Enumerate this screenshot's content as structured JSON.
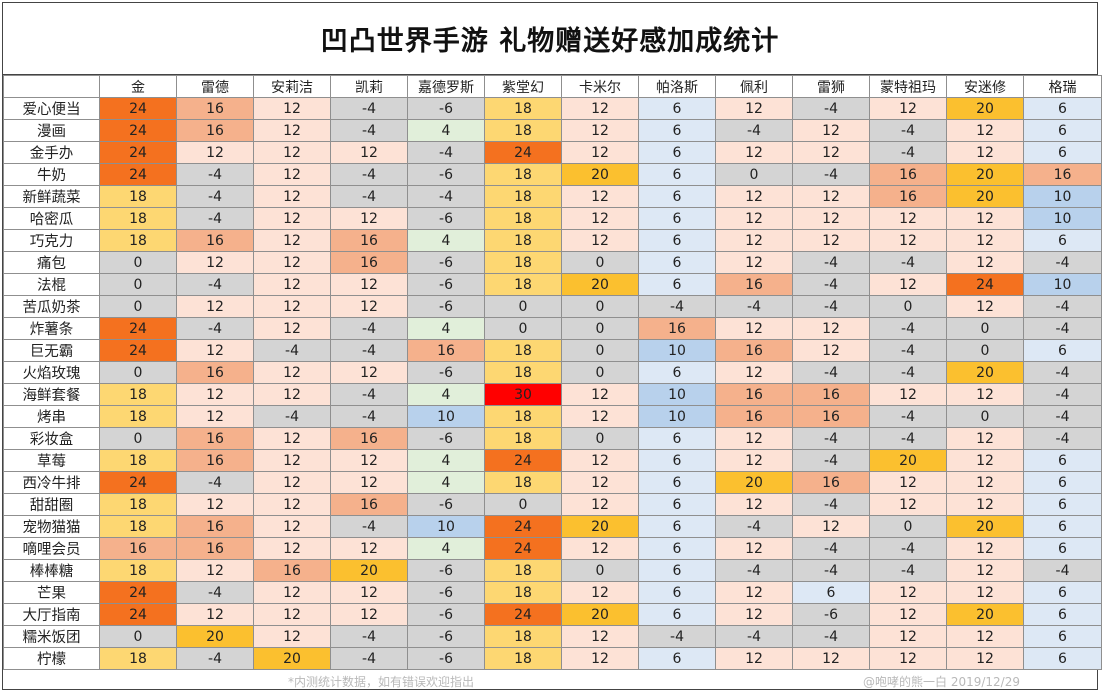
{
  "title": "凹凸世界手游  礼物赠送好感加成统计",
  "columns": [
    "金",
    "雷德",
    "安莉洁",
    "凯莉",
    "嘉德罗斯",
    "紫堂幻",
    "卡米尔",
    "帕洛斯",
    "佩利",
    "雷狮",
    "蒙特祖玛",
    "安迷修",
    "格瑞"
  ],
  "rows": [
    {
      "name": "爱心便当",
      "values": [
        24,
        16,
        12,
        -4,
        -6,
        18,
        12,
        6,
        12,
        -4,
        12,
        20,
        6
      ]
    },
    {
      "name": "漫画",
      "values": [
        24,
        16,
        12,
        -4,
        4,
        18,
        12,
        6,
        -4,
        12,
        -4,
        12,
        6
      ]
    },
    {
      "name": "金手办",
      "values": [
        24,
        12,
        12,
        12,
        -4,
        24,
        12,
        6,
        12,
        12,
        -4,
        12,
        6
      ]
    },
    {
      "name": "牛奶",
      "values": [
        24,
        -4,
        12,
        -4,
        -6,
        18,
        20,
        6,
        0,
        -4,
        16,
        20,
        16
      ]
    },
    {
      "name": "新鲜蔬菜",
      "values": [
        18,
        -4,
        12,
        -4,
        -4,
        18,
        12,
        6,
        12,
        12,
        16,
        20,
        10
      ]
    },
    {
      "name": "哈密瓜",
      "values": [
        18,
        -4,
        12,
        12,
        -6,
        18,
        12,
        6,
        12,
        12,
        12,
        12,
        10
      ]
    },
    {
      "name": "巧克力",
      "values": [
        18,
        16,
        12,
        16,
        4,
        18,
        12,
        6,
        12,
        12,
        12,
        12,
        6
      ]
    },
    {
      "name": "痛包",
      "values": [
        0,
        12,
        12,
        16,
        -6,
        18,
        0,
        6,
        12,
        -4,
        -4,
        12,
        -4
      ]
    },
    {
      "name": "法棍",
      "values": [
        0,
        -4,
        12,
        12,
        -6,
        18,
        20,
        6,
        16,
        -4,
        12,
        24,
        10
      ]
    },
    {
      "name": "苦瓜奶茶",
      "values": [
        0,
        12,
        12,
        12,
        -6,
        0,
        0,
        -4,
        -4,
        -4,
        0,
        12,
        -4
      ]
    },
    {
      "name": "炸薯条",
      "values": [
        24,
        -4,
        12,
        -4,
        4,
        0,
        0,
        16,
        12,
        12,
        -4,
        0,
        -4
      ]
    },
    {
      "name": "巨无霸",
      "values": [
        24,
        12,
        -4,
        -4,
        16,
        18,
        0,
        10,
        16,
        12,
        -4,
        0,
        6
      ]
    },
    {
      "name": "火焰玫瑰",
      "values": [
        0,
        16,
        12,
        12,
        -6,
        18,
        0,
        6,
        12,
        -4,
        -4,
        20,
        -4
      ]
    },
    {
      "name": "海鲜套餐",
      "values": [
        18,
        12,
        12,
        -4,
        4,
        30,
        12,
        10,
        16,
        16,
        12,
        12,
        -4
      ]
    },
    {
      "name": "烤串",
      "values": [
        18,
        12,
        -4,
        -4,
        10,
        18,
        12,
        10,
        16,
        16,
        -4,
        0,
        -4
      ]
    },
    {
      "name": "彩妆盒",
      "values": [
        0,
        16,
        12,
        16,
        -6,
        18,
        0,
        6,
        12,
        -4,
        -4,
        12,
        -4
      ]
    },
    {
      "name": "草莓",
      "values": [
        18,
        16,
        12,
        12,
        4,
        24,
        12,
        6,
        12,
        -4,
        20,
        12,
        6
      ]
    },
    {
      "name": "西冷牛排",
      "values": [
        24,
        -4,
        12,
        12,
        4,
        18,
        12,
        6,
        20,
        16,
        12,
        12,
        6
      ]
    },
    {
      "name": "甜甜圈",
      "values": [
        18,
        12,
        12,
        16,
        -6,
        0,
        12,
        6,
        12,
        -4,
        12,
        12,
        6
      ]
    },
    {
      "name": "宠物猫猫",
      "values": [
        18,
        16,
        12,
        -4,
        10,
        24,
        20,
        6,
        -4,
        12,
        0,
        20,
        6
      ]
    },
    {
      "name": "嘀哩会员",
      "values": [
        16,
        16,
        12,
        12,
        4,
        24,
        12,
        6,
        12,
        -4,
        -4,
        12,
        6
      ]
    },
    {
      "name": "棒棒糖",
      "values": [
        18,
        12,
        16,
        20,
        -6,
        18,
        0,
        6,
        -4,
        -4,
        -4,
        12,
        -4
      ]
    },
    {
      "name": "芒果",
      "values": [
        24,
        -4,
        12,
        12,
        -6,
        18,
        12,
        6,
        12,
        6,
        12,
        12,
        6
      ]
    },
    {
      "name": "大厅指南",
      "values": [
        24,
        12,
        12,
        12,
        -6,
        24,
        20,
        6,
        12,
        -6,
        12,
        20,
        6
      ]
    },
    {
      "name": "糯米饭团",
      "values": [
        0,
        20,
        12,
        -4,
        -6,
        18,
        12,
        -4,
        -4,
        -4,
        12,
        12,
        6
      ]
    },
    {
      "name": "柠檬",
      "values": [
        18,
        -4,
        20,
        -4,
        -6,
        18,
        12,
        6,
        12,
        12,
        12,
        12,
        6
      ]
    }
  ],
  "footer": {
    "note": "*内测统计数据，如有错误欢迎指出",
    "signature": "@咆哮的熊一白  2019/12/29"
  },
  "colors": {
    "30": "#ff0000",
    "24": "#f4711f",
    "20": "#fbc02f",
    "18": "#fdd772",
    "16": "#f5b18c",
    "12": "#fde2d6",
    "10": "#b8d1ec",
    "6": "#dde8f5",
    "4": "#e1efda",
    "0": "#d4d4d4",
    "-4": "#d4d4d4",
    "-6": "#d4d4d4",
    "grid": "#8f8f8f"
  }
}
